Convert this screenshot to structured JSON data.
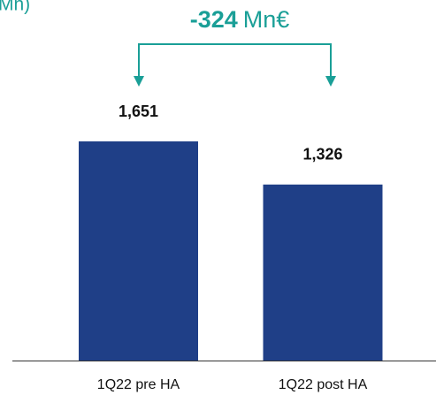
{
  "chart_data": {
    "type": "bar",
    "title": "Mn)",
    "annotation": {
      "value": "-324",
      "unit": "Mn€"
    },
    "categories": [
      "1Q22 pre HA",
      "1Q22 post HA"
    ],
    "values": [
      1651,
      1326
    ],
    "value_labels": [
      "1,651",
      "1,326"
    ],
    "color": "#1f3f87",
    "annotation_color": "#1a9f97"
  }
}
